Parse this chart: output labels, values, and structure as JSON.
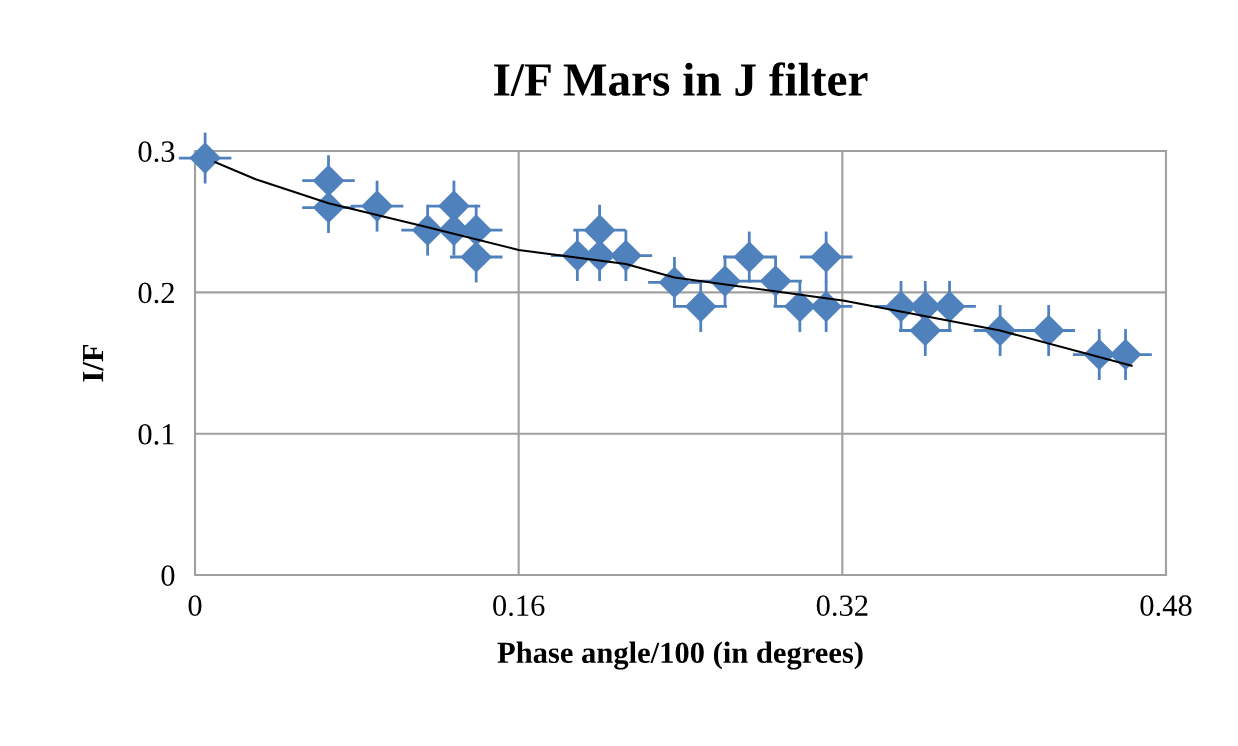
{
  "chart_data": {
    "type": "scatter",
    "title": "I/F Mars in J filter",
    "xlabel": "Phase angle/100 (in degrees)",
    "ylabel": "I/F",
    "xlim": [
      0,
      0.48
    ],
    "xticks": [
      0,
      0.16,
      0.32,
      0.48
    ],
    "ylim": [
      0,
      0.3
    ],
    "yticks": [
      0,
      0.1,
      0.2,
      0.3
    ],
    "grid": true,
    "legend": false,
    "marker": "diamond",
    "series": [
      {
        "color": "#4f81bd",
        "x": [
          0.005,
          0.066,
          0.066,
          0.09,
          0.115,
          0.128,
          0.128,
          0.139,
          0.139,
          0.189,
          0.2,
          0.2,
          0.213,
          0.237,
          0.25,
          0.262,
          0.274,
          0.287,
          0.299,
          0.312,
          0.312,
          0.349,
          0.361,
          0.361,
          0.373,
          0.398,
          0.422,
          0.447,
          0.46
        ],
        "values": [
          0.295,
          0.279,
          0.26,
          0.261,
          0.244,
          0.261,
          0.244,
          0.244,
          0.225,
          0.226,
          0.244,
          0.226,
          0.226,
          0.207,
          0.19,
          0.208,
          0.225,
          0.208,
          0.19,
          0.225,
          0.19,
          0.19,
          0.19,
          0.173,
          0.19,
          0.173,
          0.173,
          0.156,
          0.156
        ],
        "errors": [
          0.018,
          0.018,
          0.018,
          0.018,
          0.018,
          0.018,
          0.018,
          0.018,
          0.018,
          0.018,
          0.018,
          0.018,
          0.018,
          0.018,
          0.018,
          0.018,
          0.018,
          0.018,
          0.018,
          0.018,
          0.018,
          0.018,
          0.018,
          0.018,
          0.018,
          0.018,
          0.018,
          0.018,
          0.018
        ],
        "xerrors": [
          0.013,
          0.013,
          0.013,
          0.013,
          0.013,
          0.013,
          0.013,
          0.013,
          0.013,
          0.013,
          0.013,
          0.013,
          0.013,
          0.013,
          0.013,
          0.013,
          0.013,
          0.013,
          0.013,
          0.013,
          0.013,
          0.013,
          0.013,
          0.013,
          0.013,
          0.013,
          0.013,
          0.013,
          0.013
        ]
      },
      {
        "type": "line",
        "color": "#000000",
        "marker": "none",
        "line_style": "solid",
        "x": [
          0.01,
          0.03,
          0.066,
          0.115,
          0.16,
          0.213,
          0.237,
          0.321,
          0.398,
          0.463
        ],
        "values": [
          0.292,
          0.28,
          0.263,
          0.246,
          0.23,
          0.22,
          0.2105,
          0.194,
          0.173,
          0.148
        ]
      }
    ]
  }
}
